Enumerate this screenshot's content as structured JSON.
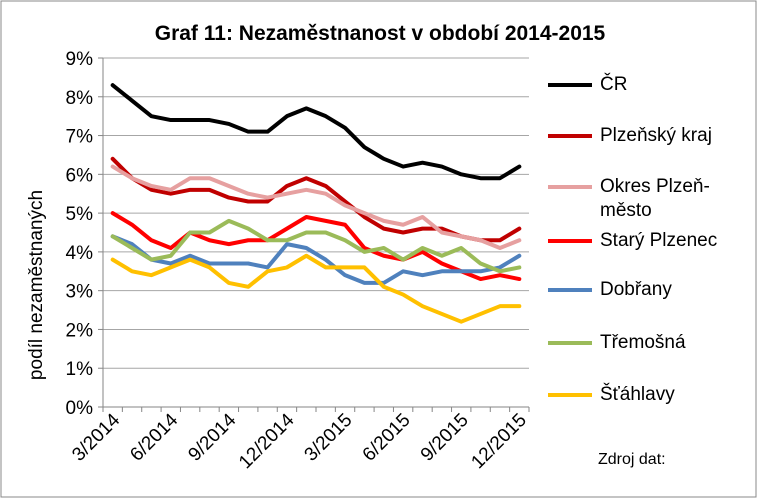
{
  "chart_data": {
    "type": "line",
    "title": "Graf 11: Nezaměstnanost v období 2014-2015",
    "y_label": "podíl nezaměstnaných",
    "source": "Zdroj dat:",
    "categories": [
      "3/2014",
      null,
      null,
      "6/2014",
      null,
      null,
      "9/2014",
      null,
      null,
      "12/2014",
      null,
      null,
      "3/2015",
      null,
      null,
      "6/2015",
      null,
      null,
      "9/2015",
      null,
      null,
      "12/2015"
    ],
    "ylim": [
      0,
      9
    ],
    "yticks": [
      {
        "value": 0,
        "label": "0%"
      },
      {
        "value": 1,
        "label": "1%"
      },
      {
        "value": 2,
        "label": "2%"
      },
      {
        "value": 3,
        "label": "3%"
      },
      {
        "value": 4,
        "label": "4%"
      },
      {
        "value": 5,
        "label": "5%"
      },
      {
        "value": 6,
        "label": "6%"
      },
      {
        "value": 7,
        "label": "7%"
      },
      {
        "value": 8,
        "label": "8%"
      },
      {
        "value": 9,
        "label": "9%"
      }
    ],
    "grid": true,
    "legend": "right",
    "series": [
      {
        "name": "ČR",
        "color": "#000000",
        "values": [
          8.3,
          7.9,
          7.5,
          7.4,
          7.4,
          7.4,
          7.3,
          7.1,
          7.1,
          7.5,
          7.7,
          7.5,
          7.2,
          6.7,
          6.4,
          6.2,
          6.3,
          6.2,
          6.0,
          5.9,
          5.9,
          6.2
        ]
      },
      {
        "name": "Plzeňský kraj",
        "color": "#c00000",
        "values": [
          6.4,
          5.9,
          5.6,
          5.5,
          5.6,
          5.6,
          5.4,
          5.3,
          5.3,
          5.7,
          5.9,
          5.7,
          5.3,
          4.9,
          4.6,
          4.5,
          4.6,
          4.6,
          4.4,
          4.3,
          4.3,
          4.6
        ]
      },
      {
        "name": "Okres Plzeň-město",
        "color": "#e6a0a0",
        "values": [
          6.2,
          5.9,
          5.7,
          5.6,
          5.9,
          5.9,
          5.7,
          5.5,
          5.4,
          5.5,
          5.6,
          5.5,
          5.2,
          5.0,
          4.8,
          4.7,
          4.9,
          4.5,
          4.4,
          4.3,
          4.1,
          4.3
        ]
      },
      {
        "name": "Starý Plzenec",
        "color": "#ff0000",
        "values": [
          5.0,
          4.7,
          4.3,
          4.1,
          4.5,
          4.3,
          4.2,
          4.3,
          4.3,
          4.6,
          4.9,
          4.8,
          4.7,
          4.1,
          3.9,
          3.8,
          4.0,
          3.7,
          3.5,
          3.3,
          3.4,
          3.3
        ]
      },
      {
        "name": "Dobřany",
        "color": "#4f81bd",
        "values": [
          4.4,
          4.2,
          3.8,
          3.7,
          3.9,
          3.7,
          3.7,
          3.7,
          3.6,
          4.2,
          4.1,
          3.8,
          3.4,
          3.2,
          3.2,
          3.5,
          3.4,
          3.5,
          3.5,
          3.5,
          3.6,
          3.9
        ]
      },
      {
        "name": "Třemošná",
        "color": "#9bbb59",
        "values": [
          4.4,
          4.1,
          3.8,
          3.9,
          4.5,
          4.5,
          4.8,
          4.6,
          4.3,
          4.3,
          4.5,
          4.5,
          4.3,
          4.0,
          4.1,
          3.8,
          4.1,
          3.9,
          4.1,
          3.7,
          3.5,
          3.6
        ]
      },
      {
        "name": "Šťáhlavy",
        "color": "#ffc000",
        "values": [
          3.8,
          3.5,
          3.4,
          3.6,
          3.8,
          3.6,
          3.2,
          3.1,
          3.5,
          3.6,
          3.9,
          3.6,
          3.6,
          3.6,
          3.1,
          2.9,
          2.6,
          2.4,
          2.2,
          2.4,
          2.6,
          2.6
        ]
      }
    ]
  }
}
